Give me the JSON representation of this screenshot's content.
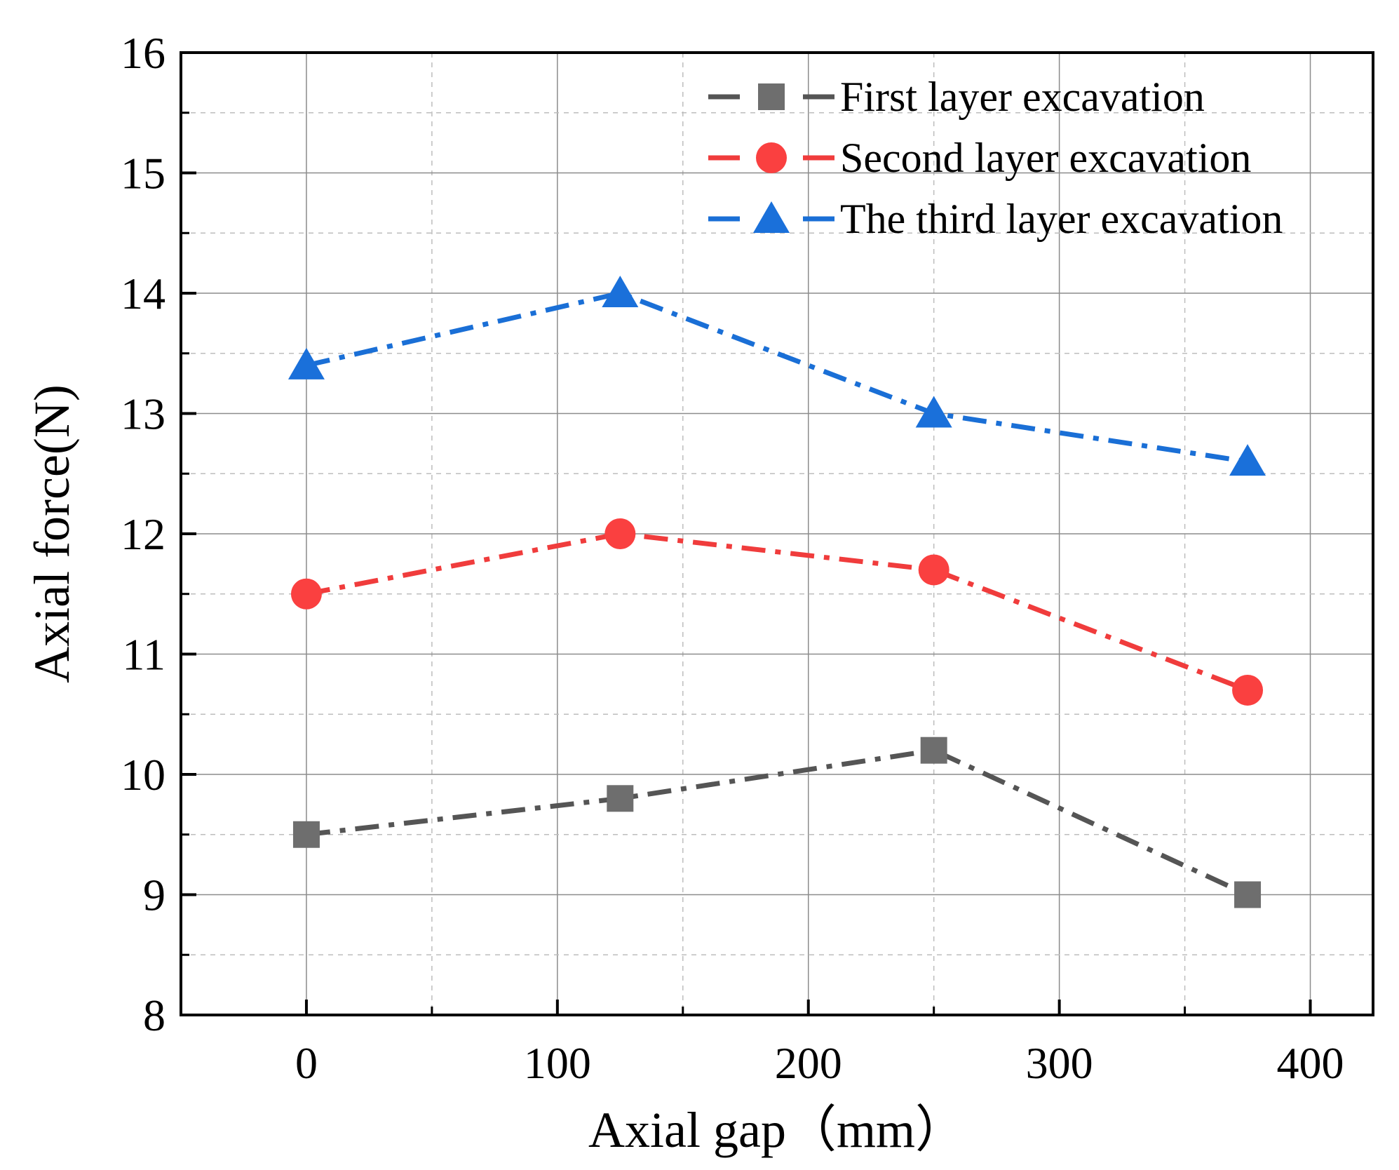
{
  "chart_data": {
    "type": "line",
    "title": "",
    "xlabel": "Axial gap（mm）",
    "ylabel": "Axial force(N)",
    "xlim": [
      -50,
      425
    ],
    "ylim": [
      8,
      16
    ],
    "xticks": [
      0,
      100,
      200,
      300,
      400
    ],
    "xminor": [
      50,
      150,
      250,
      350
    ],
    "yticks": [
      8,
      9,
      10,
      11,
      12,
      13,
      14,
      15,
      16
    ],
    "yminor": [
      8.5,
      9.5,
      10.5,
      11.5,
      12.5,
      13.5,
      14.5,
      15.5
    ],
    "grid": true,
    "legend_position": "top-right",
    "x": [
      0,
      125,
      250,
      375
    ],
    "series": [
      {
        "name": "First layer excavation",
        "values": [
          9.5,
          9.8,
          10.2,
          9.0
        ],
        "color": "#555555",
        "marker_color": "#6e6e6e",
        "marker": "square"
      },
      {
        "name": "Second layer excavation",
        "values": [
          11.5,
          12.0,
          11.7,
          10.7
        ],
        "color": "#f03c3c",
        "marker_color": "#fa4040",
        "marker": "circle"
      },
      {
        "name": "The third layer excavation",
        "values": [
          13.4,
          14.0,
          13.0,
          12.6
        ],
        "color": "#1a6fd6",
        "marker_color": "#1a70da",
        "marker": "triangle"
      }
    ]
  }
}
